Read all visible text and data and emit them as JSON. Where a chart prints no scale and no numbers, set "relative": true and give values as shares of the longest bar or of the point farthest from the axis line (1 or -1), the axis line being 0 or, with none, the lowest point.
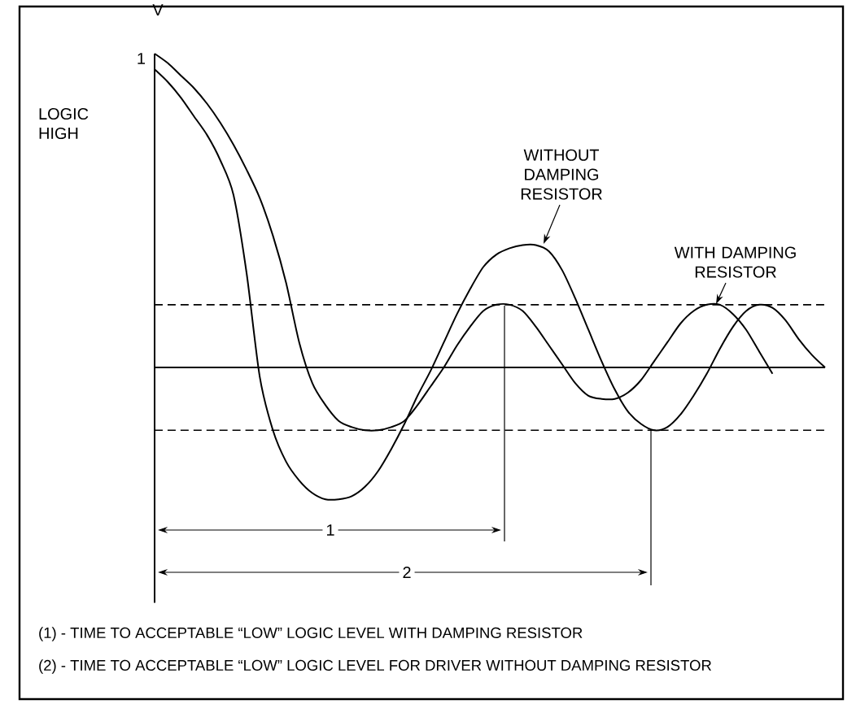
{
  "chart_data": {
    "type": "line",
    "relative": true,
    "ylabel": "V",
    "categories": [
      null,
      null,
      null,
      null,
      null,
      null,
      null,
      null,
      null,
      null,
      null,
      null,
      null,
      null,
      null,
      null,
      null,
      null,
      null,
      null,
      null,
      null,
      null,
      null,
      null,
      null,
      null,
      null,
      null,
      null,
      null,
      null,
      null,
      null,
      null,
      null,
      null,
      null,
      null,
      null,
      null,
      null,
      null,
      null,
      null,
      null,
      null,
      null,
      null,
      null,
      null,
      null
    ],
    "series": [
      {
        "name": "WITHOUT DAMPING RESISTOR",
        "color": "#000000",
        "values": [
          0.95,
          0.91,
          0.86,
          0.8,
          0.74,
          0.66,
          0.55,
          0.3,
          -0.03,
          -0.2,
          -0.3,
          -0.36,
          -0.4,
          -0.42,
          -0.42,
          -0.41,
          -0.38,
          -0.33,
          -0.26,
          -0.18,
          -0.09,
          -0.01,
          0.08,
          0.17,
          0.25,
          0.32,
          0.36,
          0.38,
          0.39,
          0.39,
          0.37,
          0.31,
          0.22,
          0.12,
          0.02,
          -0.07,
          -0.14,
          -0.18,
          -0.2,
          -0.19,
          -0.15,
          -0.09,
          -0.02,
          0.06,
          0.13,
          0.18,
          0.2,
          0.19,
          0.15,
          0.09,
          0.04,
          0.0
        ]
      },
      {
        "name": "WITH DAMPING RESISTOR",
        "color": "#000000",
        "values": [
          1.0,
          0.97,
          0.93,
          0.89,
          0.84,
          0.78,
          0.71,
          0.63,
          0.54,
          0.42,
          0.27,
          0.08,
          -0.05,
          -0.12,
          -0.17,
          -0.19,
          -0.2,
          -0.2,
          -0.19,
          -0.17,
          -0.12,
          -0.06,
          0.0,
          0.07,
          0.13,
          0.18,
          0.2,
          0.2,
          0.18,
          0.13,
          0.07,
          0.01,
          -0.05,
          -0.09,
          -0.1,
          -0.1,
          -0.08,
          -0.04,
          0.02,
          0.08,
          0.14,
          0.18,
          0.2,
          0.2,
          0.17,
          0.12,
          0.05,
          -0.02,
          null,
          null,
          null,
          null
        ]
      }
    ],
    "ref_lines": [
      {
        "axis": "y",
        "value": 0.2,
        "line_style": "dashed"
      },
      {
        "axis": "y",
        "value": -0.2,
        "line_style": "dashed"
      }
    ],
    "annotations": [
      "1",
      "LOGIC HIGH",
      "1",
      "2",
      "(1) - TIME TO ACCEPTABLE “LOW” LOGIC LEVEL WITH DAMPING RESISTOR",
      "(2) - TIME TO ACCEPTABLE “LOW” LOGIC LEVEL FOR DRIVER WITHOUT DAMPING RESISTOR"
    ]
  }
}
